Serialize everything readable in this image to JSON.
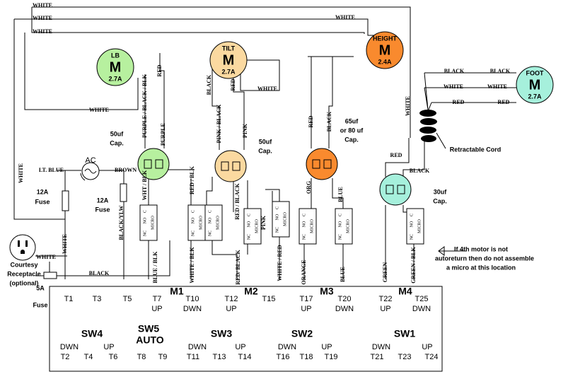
{
  "motors": [
    {
      "name": "LB",
      "symbol": "M",
      "rating": "2.7A"
    },
    {
      "name": "TILT",
      "symbol": "M",
      "rating": "2.7A"
    },
    {
      "name": "HEIGHT",
      "symbol": "M",
      "rating": "2.4A"
    },
    {
      "name": "FOOT",
      "symbol": "M",
      "rating": "2.7A"
    }
  ],
  "capacitors": [
    {
      "lines": [
        "50uf",
        "Cap."
      ]
    },
    {
      "lines": [
        "50uf",
        "Cap."
      ]
    },
    {
      "lines": [
        "65uf",
        "or 80 uf",
        "Cap."
      ]
    },
    {
      "lines": [
        "30uf",
        "Cap."
      ]
    }
  ],
  "wire_labels": [
    "WHITE",
    "WHITE",
    "WHITE",
    "WHITE",
    "WHITE",
    "WHITE",
    "RED",
    "PURPLE / BLACK / BLK",
    "PURPLE",
    "BLACK",
    "RED",
    "WHITE",
    "PINK / BLACK",
    "PINK",
    "RED",
    "BLACK",
    "BLACK",
    "BLACK",
    "WHITE",
    "WHITE",
    "RED",
    "RED",
    "WHITE",
    "RED",
    "BLACK",
    "LT. BLUE",
    "BROWN",
    "WHT / BLK",
    "BLACK/YLW",
    "RED / BLK",
    "RED / BLACK",
    "PINK",
    "ORG",
    "BLUE",
    "WHITE",
    "WHITE",
    "BLACK",
    "BLUE / BLK",
    "WHITE / BLK",
    "RED/ BLACK",
    "WHITE / RED",
    "ORANGE",
    "BLUE",
    "GREEN",
    "GREEN / BLK"
  ],
  "micro_switch": {
    "contacts": [
      "C",
      "NO",
      "NC"
    ],
    "label": "MICRO"
  },
  "power": {
    "ac": "AC",
    "fuse_left": [
      "12A",
      "Fuse"
    ],
    "fuse_right": [
      "12A",
      "Fuse"
    ],
    "fuse_5a": [
      "5A",
      "Fuse"
    ],
    "receptacle": [
      "Courtesy",
      "Receptacle",
      "(optional)"
    ]
  },
  "retractable_cord": "Retractable Cord",
  "note": [
    "If 4th motor is not",
    "autoreturn then do not assemble",
    "a micro at this location"
  ],
  "terminal_board": {
    "motor_groups": [
      "M1",
      "M2",
      "M3",
      "M4"
    ],
    "top_terminals": [
      {
        "label": "T1"
      },
      {
        "label": "T3"
      },
      {
        "label": "T5"
      },
      {
        "label": "T7",
        "sub": "UP"
      },
      {
        "label": "T10",
        "sub": "DWN"
      },
      {
        "label": "T12",
        "sub": "UP"
      },
      {
        "label": "T15"
      },
      {
        "label": "T17",
        "sub": "UP"
      },
      {
        "label": "T20",
        "sub": "DWN"
      },
      {
        "label": "T22",
        "sub": "UP"
      },
      {
        "label": "T25",
        "sub": "DWN"
      }
    ],
    "switches": [
      {
        "name": "SW4",
        "terminals": [
          {
            "label": "T2",
            "sub": "DWN"
          },
          {
            "label": "T4"
          },
          {
            "label": "T6",
            "sub": "UP"
          }
        ]
      },
      {
        "name": "SW5",
        "sub": "AUTO",
        "terminals": [
          {
            "label": "T8"
          },
          {
            "label": "T9"
          }
        ]
      },
      {
        "name": "SW3",
        "terminals": [
          {
            "label": "T11",
            "sub": "DWN"
          },
          {
            "label": "T13"
          },
          {
            "label": "T14",
            "sub": "UP"
          }
        ]
      },
      {
        "name": "SW2",
        "terminals": [
          {
            "label": "T16",
            "sub": "DWN"
          },
          {
            "label": "T18"
          },
          {
            "label": "T19",
            "sub": "UP"
          }
        ]
      },
      {
        "name": "SW1",
        "terminals": [
          {
            "label": "T21",
            "sub": "DWN"
          },
          {
            "label": "T23"
          },
          {
            "label": "T24",
            "sub": "UP"
          }
        ]
      }
    ]
  }
}
